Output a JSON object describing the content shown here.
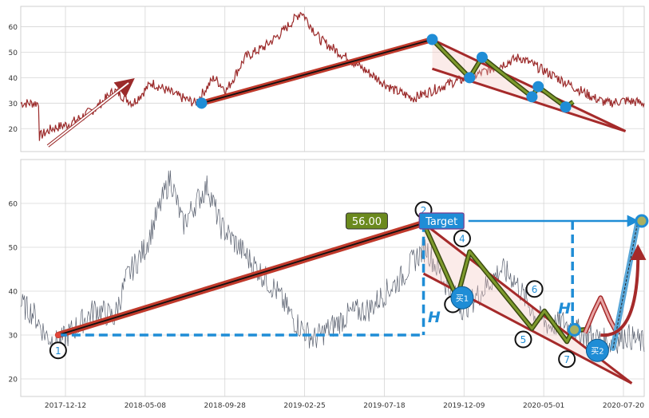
{
  "chart_data": {
    "type": "line",
    "xlabel": "",
    "ylabel": "",
    "colors": {
      "top_price": "#9b2a2a",
      "bottom_price": "#5a6170",
      "trend_thick": "#c0392b",
      "trend_core": "#111111",
      "channel": "#a52a2a",
      "zigzag_outer": "#3a4a10",
      "zigzag_inner": "#7e9a2c",
      "marker_blue": "#1f8dd6",
      "dashed": "#1f8dd6"
    },
    "x_ticks": [
      "2017-12-12",
      "2018-05-08",
      "2018-09-28",
      "2019-02-25",
      "2019-07-18",
      "2019-12-09",
      "2020-05-01",
      "2020-07-20"
    ],
    "top_panel": {
      "ylim": [
        11,
        68
      ],
      "yticks": [
        20,
        30,
        40,
        50,
        60
      ],
      "price_anchors": [
        [
          0.03,
          17
        ],
        [
          0.05,
          20
        ],
        [
          0.08,
          22
        ],
        [
          0.12,
          28
        ],
        [
          0.15,
          35
        ],
        [
          0.18,
          30
        ],
        [
          0.21,
          38
        ],
        [
          0.25,
          33
        ],
        [
          0.28,
          30
        ],
        [
          0.31,
          40
        ],
        [
          0.33,
          35
        ],
        [
          0.36,
          48
        ],
        [
          0.39,
          52
        ],
        [
          0.42,
          58
        ],
        [
          0.45,
          66
        ],
        [
          0.48,
          55
        ],
        [
          0.51,
          50
        ],
        [
          0.54,
          45
        ],
        [
          0.57,
          40
        ],
        [
          0.6,
          35
        ],
        [
          0.63,
          32
        ],
        [
          0.66,
          35
        ],
        [
          0.69,
          38
        ],
        [
          0.72,
          40
        ],
        [
          0.75,
          43
        ],
        [
          0.78,
          46
        ],
        [
          0.8,
          48
        ],
        [
          0.83,
          44
        ],
        [
          0.86,
          40
        ],
        [
          0.89,
          36
        ],
        [
          0.92,
          32
        ],
        [
          0.94,
          30
        ],
        [
          0.97,
          31
        ],
        [
          1.0,
          30
        ]
      ],
      "markers": [
        [
          0.29,
          30
        ],
        [
          0.66,
          55
        ],
        [
          0.72,
          40
        ],
        [
          0.74,
          48
        ],
        [
          0.82,
          32.5
        ],
        [
          0.83,
          36.5
        ],
        [
          0.874,
          28.5
        ]
      ],
      "zigzag": [
        [
          0.66,
          55
        ],
        [
          0.72,
          40
        ],
        [
          0.74,
          48
        ],
        [
          0.82,
          32.5
        ],
        [
          0.83,
          36.5
        ],
        [
          0.874,
          28.5
        ],
        [
          0.886,
          30.5
        ]
      ],
      "trend": [
        [
          0.29,
          30
        ],
        [
          0.66,
          55
        ]
      ],
      "channel_upper": [
        [
          0.66,
          55
        ],
        [
          0.97,
          19
        ]
      ],
      "channel_lower": [
        [
          0.66,
          43.5
        ],
        [
          0.97,
          19
        ]
      ]
    },
    "bottom_panel": {
      "ylim": [
        16,
        70
      ],
      "yticks": [
        20,
        30,
        40,
        50,
        60
      ],
      "price_anchors": [
        [
          0.0,
          37
        ],
        [
          0.02,
          35
        ],
        [
          0.04,
          30
        ],
        [
          0.06,
          28
        ],
        [
          0.09,
          32
        ],
        [
          0.12,
          36
        ],
        [
          0.15,
          34
        ],
        [
          0.17,
          43
        ],
        [
          0.2,
          50
        ],
        [
          0.22,
          58
        ],
        [
          0.24,
          66
        ],
        [
          0.26,
          55
        ],
        [
          0.28,
          60
        ],
        [
          0.3,
          64
        ],
        [
          0.32,
          55
        ],
        [
          0.35,
          50
        ],
        [
          0.38,
          45
        ],
        [
          0.41,
          40
        ],
        [
          0.44,
          33
        ],
        [
          0.47,
          29
        ],
        [
          0.5,
          32
        ],
        [
          0.53,
          35
        ],
        [
          0.56,
          36
        ],
        [
          0.58,
          39
        ],
        [
          0.61,
          43
        ],
        [
          0.63,
          47
        ],
        [
          0.65,
          50
        ],
        [
          0.68,
          42
        ],
        [
          0.71,
          36
        ],
        [
          0.74,
          40
        ],
        [
          0.77,
          45
        ],
        [
          0.79,
          43
        ],
        [
          0.81,
          38
        ],
        [
          0.83,
          34
        ],
        [
          0.85,
          32
        ],
        [
          0.87,
          33
        ],
        [
          0.89,
          31
        ],
        [
          0.91,
          30
        ],
        [
          0.93,
          29
        ],
        [
          0.95,
          28
        ],
        [
          0.97,
          30
        ],
        [
          1.0,
          28
        ]
      ],
      "trend": [
        [
          0.06,
          30
        ],
        [
          0.646,
          55.5
        ]
      ],
      "zigzag": [
        [
          0.646,
          55.5
        ],
        [
          0.7,
          38.5
        ],
        [
          0.72,
          49
        ],
        [
          0.82,
          31.5
        ],
        [
          0.84,
          35.5
        ],
        [
          0.876,
          28.5
        ],
        [
          0.885,
          31
        ],
        [
          0.908,
          31.3
        ]
      ],
      "channel_upper": [
        [
          0.646,
          55.5
        ],
        [
          0.98,
          19
        ]
      ],
      "channel_lower": [
        [
          0.646,
          44
        ],
        [
          0.98,
          19
        ]
      ],
      "dashed_h": [
        [
          0.06,
          30
        ],
        [
          0.646,
          30
        ]
      ],
      "dashed_v": [
        [
          0.646,
          55.5
        ],
        [
          0.646,
          30
        ]
      ],
      "dashed_v2": [
        [
          0.885,
          56
        ],
        [
          0.885,
          31
        ]
      ],
      "target_arrow": [
        [
          0.718,
          56
        ],
        [
          0.988,
          56
        ]
      ],
      "spike": [
        [
          0.905,
          30.5
        ],
        [
          0.918,
          35
        ],
        [
          0.93,
          38.5
        ],
        [
          0.945,
          33.5
        ],
        [
          0.958,
          30
        ]
      ],
      "wedge_line": [
        [
          0.95,
          27
        ],
        [
          0.99,
          56
        ]
      ],
      "curve_arrow": [
        [
          0.93,
          30
        ],
        [
          0.99,
          50
        ]
      ],
      "points": [
        {
          "label": "1",
          "x": 0.06,
          "y": 26.5
        },
        {
          "label": "2",
          "x": 0.646,
          "y": 58.5
        },
        {
          "label": "",
          "x": 0.693,
          "y": 37
        },
        {
          "label": "4",
          "x": 0.708,
          "y": 52
        },
        {
          "label": "5",
          "x": 0.806,
          "y": 29
        },
        {
          "label": "6",
          "x": 0.824,
          "y": 40.5
        },
        {
          "label": "7",
          "x": 0.876,
          "y": 24.5
        }
      ],
      "buy_points": [
        {
          "label": "买1",
          "x": 0.708,
          "y": 38.5
        },
        {
          "label": "买2",
          "x": 0.925,
          "y": 26.5
        }
      ],
      "small_markers": [
        [
          0.888,
          31.2
        ],
        [
          0.996,
          56
        ]
      ],
      "price_label": {
        "text": "56.00",
        "x": 0.555,
        "y": 56
      },
      "target_label": {
        "text": "Target",
        "x": 0.675,
        "y": 56
      },
      "h_labels": [
        {
          "text": "H",
          "x": 0.663,
          "y": 34
        },
        {
          "text": "H",
          "x": 0.872,
          "y": 36
        }
      ]
    }
  }
}
